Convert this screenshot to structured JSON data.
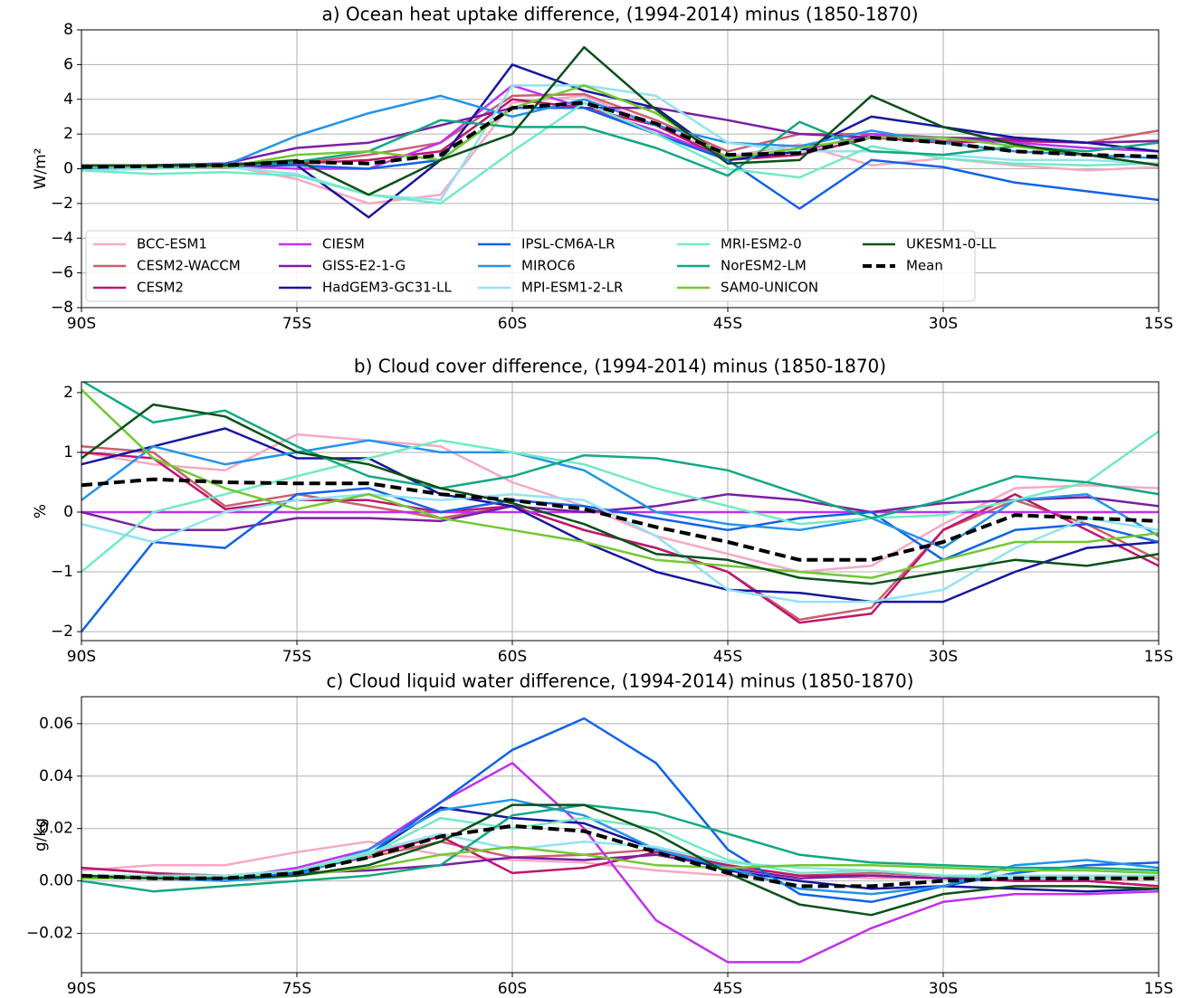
{
  "chart_data": [
    {
      "type": "line",
      "title": "a) Ocean heat uptake difference, (1994-2014) minus (1850-1870)",
      "y_label": "W/m²",
      "x": [
        -90,
        -85,
        -80,
        -75,
        -70,
        -65,
        -60,
        -55,
        -50,
        -45,
        -40,
        -35,
        -30,
        -25,
        -20,
        -15
      ],
      "xlim": [
        -90,
        -15
      ],
      "xticks": [
        {
          "value": -90,
          "label": "90S"
        },
        {
          "value": -75,
          "label": "75S"
        },
        {
          "value": -60,
          "label": "60S"
        },
        {
          "value": -45,
          "label": "45S"
        },
        {
          "value": -30,
          "label": "30S"
        },
        {
          "value": -15,
          "label": "15S"
        }
      ],
      "ylim": [
        -8,
        8
      ],
      "yticks": [
        {
          "value": -8,
          "label": "−8"
        },
        {
          "value": -6,
          "label": "−6"
        },
        {
          "value": -4,
          "label": "−4"
        },
        {
          "value": -2,
          "label": "−2"
        },
        0,
        2,
        4,
        6,
        8
      ],
      "grid": true,
      "legend": "lower left",
      "series": [
        {
          "name": "BCC-ESM1",
          "color": "#f7a8c4",
          "values": [
            0.1,
            0.1,
            0.2,
            -0.6,
            -2.0,
            -1.5,
            3.8,
            4.2,
            2.5,
            0.7,
            1.4,
            0.2,
            0.6,
            0.2,
            -0.1,
            0.1
          ]
        },
        {
          "name": "CESM2-WACCM",
          "color": "#c9606f",
          "values": [
            0.2,
            0.2,
            0.3,
            0.3,
            0.8,
            1.5,
            4.2,
            4.3,
            2.8,
            1.0,
            2.0,
            2.0,
            1.6,
            1.8,
            1.5,
            2.2
          ]
        },
        {
          "name": "CESM2",
          "color": "#c0156e",
          "values": [
            0.2,
            0.2,
            0.3,
            0.3,
            0.5,
            1.0,
            4.0,
            3.5,
            2.5,
            0.5,
            0.8,
            1.8,
            1.5,
            1.6,
            1.5,
            1.6
          ]
        },
        {
          "name": "CIESM",
          "color": "#c030f0",
          "values": [
            0.1,
            0.1,
            0.2,
            0.0,
            0.0,
            1.5,
            4.8,
            3.5,
            2.2,
            0.5,
            1.0,
            2.0,
            1.8,
            1.5,
            1.2,
            1.0
          ]
        },
        {
          "name": "GISS-E2-1-G",
          "color": "#7b1fa2",
          "values": [
            0.1,
            0.2,
            0.3,
            1.2,
            1.5,
            2.5,
            3.5,
            3.5,
            3.5,
            2.8,
            2.0,
            1.8,
            1.8,
            1.7,
            1.5,
            1.6
          ]
        },
        {
          "name": "HadGEM3-GC31-LL",
          "color": "#16169e",
          "values": [
            0.1,
            0.1,
            0.2,
            0.2,
            -2.8,
            0.5,
            6.0,
            4.5,
            3.5,
            0.5,
            1.0,
            3.0,
            2.4,
            1.8,
            1.5,
            1.0
          ]
        },
        {
          "name": "IPSL-CM6A-LR",
          "color": "#1062e8",
          "values": [
            0.1,
            0.2,
            0.3,
            0.2,
            0.0,
            0.5,
            3.5,
            3.5,
            2.0,
            0.5,
            -2.3,
            0.5,
            0.1,
            -0.8,
            -1.3,
            -1.8
          ]
        },
        {
          "name": "MIROC6",
          "color": "#2393ea",
          "values": [
            0.0,
            0.1,
            0.2,
            1.9,
            3.2,
            4.2,
            3.0,
            4.0,
            2.5,
            1.5,
            1.3,
            2.2,
            1.5,
            1.0,
            0.8,
            0.6
          ]
        },
        {
          "name": "MPI-ESM1-2-LR",
          "color": "#92e2f2",
          "values": [
            -0.1,
            0,
            0.1,
            -0.3,
            -1.5,
            -1.8,
            4.8,
            4.8,
            4.2,
            1.5,
            1.0,
            1.0,
            0.8,
            0.5,
            0.5,
            0.3
          ]
        },
        {
          "name": "MRI-ESM2-0",
          "color": "#72eac4",
          "values": [
            -0.1,
            -0.3,
            -0.2,
            -0.4,
            -1.5,
            -2.0,
            1.0,
            3.8,
            2.0,
            0.0,
            -0.5,
            1.3,
            0.6,
            0.3,
            0.2,
            0.3
          ]
        },
        {
          "name": "NorESM2-LM",
          "color": "#12a882",
          "values": [
            0.1,
            0.1,
            0.1,
            0.4,
            1.0,
            2.8,
            2.4,
            2.4,
            1.2,
            -0.4,
            2.7,
            1.0,
            0.8,
            1.3,
            1.0,
            1.5
          ]
        },
        {
          "name": "SAM0-UNICON",
          "color": "#72c832",
          "values": [
            0.1,
            0.1,
            0.1,
            0.8,
            1.0,
            0.5,
            3.5,
            4.8,
            3.2,
            0.6,
            1.2,
            1.8,
            1.8,
            1.3,
            0.8,
            0.2
          ]
        },
        {
          "name": "UKESM1-0-LL",
          "color": "#0b5019",
          "values": [
            0.2,
            0.2,
            0.2,
            0.5,
            -1.5,
            0.5,
            2.0,
            7.0,
            3.4,
            0.3,
            0.5,
            4.2,
            2.4,
            1.4,
            0.8,
            0.2
          ]
        },
        {
          "name": "Mean",
          "color": "#000000",
          "linestyle": "dashed",
          "values": [
            0.1,
            0.15,
            0.2,
            0.4,
            0.3,
            0.8,
            3.5,
            3.8,
            2.6,
            0.8,
            0.9,
            1.8,
            1.5,
            1.0,
            0.8,
            0.7
          ]
        }
      ]
    },
    {
      "type": "line",
      "title": "b) Cloud cover difference, (1994-2014) minus (1850-1870)",
      "y_label": "%",
      "x": [
        -90,
        -85,
        -80,
        -75,
        -70,
        -65,
        -60,
        -55,
        -50,
        -45,
        -40,
        -35,
        -30,
        -25,
        -20,
        -15
      ],
      "xlim": [
        -90,
        -15
      ],
      "xticks": [
        {
          "value": -90,
          "label": "90S"
        },
        {
          "value": -75,
          "label": "75S"
        },
        {
          "value": -60,
          "label": "60S"
        },
        {
          "value": -45,
          "label": "45S"
        },
        {
          "value": -30,
          "label": "30S"
        },
        {
          "value": -15,
          "label": "15S"
        }
      ],
      "ylim": [
        -2.15,
        2.18
      ],
      "yticks": [
        {
          "value": -2,
          "label": "−2"
        },
        {
          "value": -1,
          "label": "−1"
        },
        0,
        1,
        2
      ],
      "grid": true,
      "series": [
        {
          "color": "#f7a8c4",
          "values": [
            1.0,
            0.8,
            0.7,
            1.3,
            1.2,
            1.1,
            0.5,
            0.1,
            -0.4,
            -0.7,
            -1.0,
            -0.9,
            -0.2,
            0.4,
            0.45,
            0.4
          ]
        },
        {
          "color": "#c9606f",
          "values": [
            1.1,
            1.0,
            0.1,
            0.3,
            0.1,
            -0.1,
            0.1,
            -0.3,
            -0.6,
            -1.0,
            -1.8,
            -1.6,
            -0.3,
            0.2,
            -0.2,
            -0.8
          ]
        },
        {
          "color": "#c0156e",
          "values": [
            1.0,
            0.9,
            0.05,
            0.2,
            0.2,
            0.0,
            0.1,
            -0.3,
            -0.6,
            -1.0,
            -1.85,
            -1.7,
            -0.3,
            0.3,
            -0.3,
            -0.9
          ]
        },
        {
          "color": "#c030f0",
          "values": [
            0,
            0,
            0,
            0,
            0,
            0,
            0,
            0,
            0,
            0,
            0,
            0,
            0,
            0,
            0,
            0
          ]
        },
        {
          "color": "#7b1fa2",
          "values": [
            0,
            -0.3,
            -0.3,
            -0.1,
            -0.1,
            -0.15,
            0.1,
            0.0,
            0.1,
            0.3,
            0.2,
            0.0,
            0.15,
            0.2,
            0.25,
            0.1
          ]
        },
        {
          "color": "#16169e",
          "values": [
            0.8,
            1.1,
            1.4,
            0.9,
            0.9,
            0.3,
            0.1,
            -0.5,
            -1.0,
            -1.3,
            -1.35,
            -1.5,
            -1.5,
            -1.0,
            -0.6,
            -0.5
          ]
        },
        {
          "color": "#1062e8",
          "values": [
            -2.0,
            -0.5,
            -0.6,
            0.3,
            0.4,
            0.0,
            0.2,
            0.1,
            -0.1,
            -0.3,
            -0.1,
            0.0,
            -0.8,
            -0.3,
            -0.2,
            -0.5
          ]
        },
        {
          "color": "#2393ea",
          "values": [
            0.2,
            1.1,
            0.8,
            1.0,
            1.2,
            1.0,
            1.0,
            0.7,
            0.0,
            -0.2,
            -0.3,
            -0.1,
            -0.6,
            0.2,
            0.3,
            -0.4
          ]
        },
        {
          "color": "#92e2f2",
          "values": [
            -0.2,
            -0.5,
            0.0,
            0.2,
            0.3,
            0.2,
            0.3,
            0.2,
            -0.4,
            -1.3,
            -1.5,
            -1.5,
            -1.3,
            -0.6,
            -0.1,
            -0.3
          ]
        },
        {
          "color": "#72eac4",
          "values": [
            -1.0,
            0.0,
            0.3,
            0.6,
            0.9,
            1.2,
            1.0,
            0.8,
            0.4,
            0.1,
            -0.2,
            -0.1,
            -0.05,
            0.2,
            0.5,
            1.35
          ]
        },
        {
          "color": "#12a882",
          "values": [
            2.2,
            1.5,
            1.7,
            1.1,
            0.6,
            0.4,
            0.6,
            0.95,
            0.9,
            0.7,
            0.3,
            -0.1,
            0.2,
            0.6,
            0.5,
            0.3
          ]
        },
        {
          "color": "#72c832",
          "values": [
            2.05,
            0.9,
            0.4,
            0.05,
            0.3,
            -0.1,
            -0.3,
            -0.5,
            -0.8,
            -0.9,
            -1.0,
            -1.1,
            -0.8,
            -0.5,
            -0.5,
            -0.35
          ]
        },
        {
          "color": "#0b5019",
          "values": [
            0.9,
            1.8,
            1.6,
            1.0,
            0.8,
            0.4,
            0.15,
            -0.2,
            -0.7,
            -0.8,
            -1.1,
            -1.2,
            -1.0,
            -0.8,
            -0.9,
            -0.7
          ]
        },
        {
          "color": "#000000",
          "linestyle": "dashed",
          "values": [
            0.45,
            0.55,
            0.5,
            0.48,
            0.48,
            0.3,
            0.2,
            0.05,
            -0.25,
            -0.5,
            -0.8,
            -0.8,
            -0.5,
            -0.05,
            -0.1,
            -0.15
          ]
        }
      ]
    },
    {
      "type": "line",
      "title": "c) Cloud liquid water difference, (1994-2014) minus (1850-1870)",
      "y_label": "g/kg",
      "x": [
        -90,
        -85,
        -80,
        -75,
        -70,
        -65,
        -60,
        -55,
        -50,
        -45,
        -40,
        -35,
        -30,
        -25,
        -20,
        -15
      ],
      "xlim": [
        -90,
        -15
      ],
      "xticks": [
        {
          "value": -90,
          "label": "90S"
        },
        {
          "value": -75,
          "label": "75S"
        },
        {
          "value": -60,
          "label": "60S"
        },
        {
          "value": -45,
          "label": "45S"
        },
        {
          "value": -30,
          "label": "30S"
        },
        {
          "value": -15,
          "label": "15S"
        }
      ],
      "ylim": [
        -0.035,
        0.0703
      ],
      "yticks": [
        {
          "value": -0.02,
          "label": "−0.02"
        },
        {
          "value": 0,
          "label": "0.00"
        },
        {
          "value": 0.02,
          "label": "0.02"
        },
        {
          "value": 0.04,
          "label": "0.04"
        },
        {
          "value": 0.06,
          "label": "0.06"
        }
      ],
      "grid": true,
      "series": [
        {
          "color": "#f7a8c4",
          "values": [
            0.004,
            0.006,
            0.006,
            0.011,
            0.015,
            0.01,
            0.008,
            0.007,
            0.004,
            0.002,
            0.002,
            0.001,
            0.001,
            0.0,
            0.0,
            0.001
          ]
        },
        {
          "color": "#c9606f",
          "values": [
            0.005,
            0.003,
            0.002,
            0.004,
            0.009,
            0.015,
            0.009,
            0.01,
            0.012,
            0.006,
            0.002,
            0.003,
            0.002,
            0.0,
            0.0,
            -0.002
          ]
        },
        {
          "color": "#c0156e",
          "values": [
            0.005,
            0.003,
            0.001,
            0.003,
            0.01,
            0.017,
            0.003,
            0.005,
            0.011,
            0.006,
            0.002,
            0.002,
            0.001,
            0.0,
            0.0,
            -0.002
          ]
        },
        {
          "color": "#c030f0",
          "values": [
            0.002,
            0.002,
            0.001,
            0.005,
            0.012,
            0.03,
            0.045,
            0.02,
            -0.015,
            -0.031,
            -0.031,
            -0.018,
            -0.008,
            -0.005,
            -0.005,
            -0.004
          ]
        },
        {
          "color": "#7b1fa2",
          "values": [
            0.002,
            0.001,
            0.001,
            0.003,
            0.004,
            0.006,
            0.009,
            0.008,
            0.01,
            0.005,
            0.001,
            0.002,
            0.001,
            0.001,
            0.002,
            0.002
          ]
        },
        {
          "color": "#16169e",
          "values": [
            0.001,
            0.001,
            0.001,
            0.004,
            0.01,
            0.028,
            0.024,
            0.022,
            0.012,
            0.004,
            0.0,
            -0.003,
            -0.002,
            -0.003,
            -0.004,
            -0.003
          ]
        },
        {
          "color": "#1062e8",
          "values": [
            0.001,
            0.001,
            0.001,
            0.003,
            0.01,
            0.03,
            0.05,
            0.062,
            0.045,
            0.012,
            -0.005,
            -0.008,
            -0.002,
            0.003,
            0.006,
            0.007
          ]
        },
        {
          "color": "#2393ea",
          "values": [
            0.002,
            0.001,
            0.0,
            0.002,
            0.012,
            0.027,
            0.031,
            0.025,
            0.012,
            0.005,
            -0.003,
            -0.005,
            -0.002,
            0.006,
            0.008,
            0.005
          ]
        },
        {
          "color": "#92e2f2",
          "values": [
            0.001,
            0.002,
            0.002,
            0.004,
            0.011,
            0.018,
            0.012,
            0.015,
            0.013,
            0.007,
            0.005,
            0.004,
            0.002,
            0.002,
            0.002,
            0.002
          ]
        },
        {
          "color": "#72eac4",
          "values": [
            0.002,
            0.002,
            0.001,
            0.004,
            0.01,
            0.024,
            0.02,
            0.024,
            0.02,
            0.008,
            0.003,
            0.004,
            0.002,
            0.001,
            0.001,
            0.002
          ]
        },
        {
          "color": "#12a882",
          "values": [
            0.0,
            -0.004,
            -0.002,
            0.0,
            0.002,
            0.006,
            0.025,
            0.029,
            0.026,
            0.018,
            0.01,
            0.007,
            0.006,
            0.005,
            0.005,
            0.004
          ]
        },
        {
          "color": "#72c832",
          "values": [
            0.001,
            0.001,
            0.001,
            0.002,
            0.005,
            0.01,
            0.013,
            0.01,
            0.006,
            0.005,
            0.006,
            0.006,
            0.005,
            0.004,
            0.004,
            0.003
          ]
        },
        {
          "color": "#0b5019",
          "values": [
            0.002,
            0.001,
            0.001,
            0.002,
            0.006,
            0.015,
            0.029,
            0.029,
            0.018,
            0.003,
            -0.009,
            -0.013,
            -0.005,
            -0.002,
            -0.002,
            -0.003
          ]
        },
        {
          "color": "#000000",
          "linestyle": "dashed",
          "values": [
            0.002,
            0.001,
            0.001,
            0.003,
            0.009,
            0.017,
            0.021,
            0.019,
            0.011,
            0.003,
            -0.002,
            -0.002,
            0.0,
            0.001,
            0.001,
            0.001
          ]
        }
      ]
    }
  ]
}
